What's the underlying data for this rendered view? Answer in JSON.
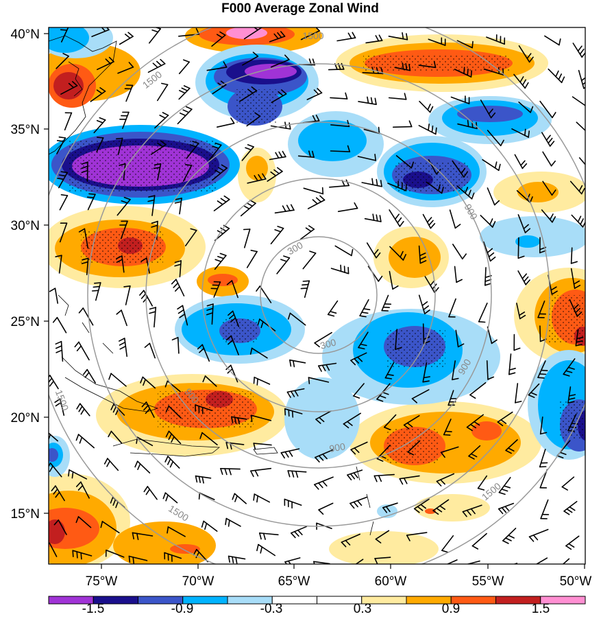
{
  "title": "F000 Average Zonal Wind",
  "lat_labels": [
    "40°N",
    "35°N",
    "30°N",
    "25°N",
    "20°N",
    "15°N"
  ],
  "lon_labels": [
    "75°W",
    "70°W",
    "65°W",
    "60°W",
    "55°W",
    "50°W"
  ],
  "ring_labels": [
    "300",
    "300",
    "900",
    "900",
    "900",
    "900",
    "1500",
    "1500",
    "1500",
    "1500",
    "1500"
  ],
  "colorbar": {
    "tick_labels": [
      "-1.5",
      "-0.9",
      "-0.3",
      "0.3",
      "0.9",
      "1.5"
    ],
    "colors": [
      "#a033d6",
      "#1a0f8c",
      "#3b55c9",
      "#00b3ff",
      "#a8ddf8",
      "#ffffff",
      "#ffffff",
      "#ffeba0",
      "#ffaa00",
      "#ff5a14",
      "#c21f1f",
      "#ff8fd2"
    ]
  },
  "colors": {
    "neg_strong": "#a033d6",
    "neg_dark": "#1a0f8c",
    "neg_mid": "#3b55c9",
    "neg_light": "#00b3ff",
    "neg_pale": "#a8ddf8",
    "pos_pale": "#ffeba0",
    "pos_light": "#ffaa00",
    "pos_mid": "#ff5a14",
    "pos_dark": "#c21f1f",
    "pos_strong": "#ff8fd2",
    "ring": "#999999"
  }
}
